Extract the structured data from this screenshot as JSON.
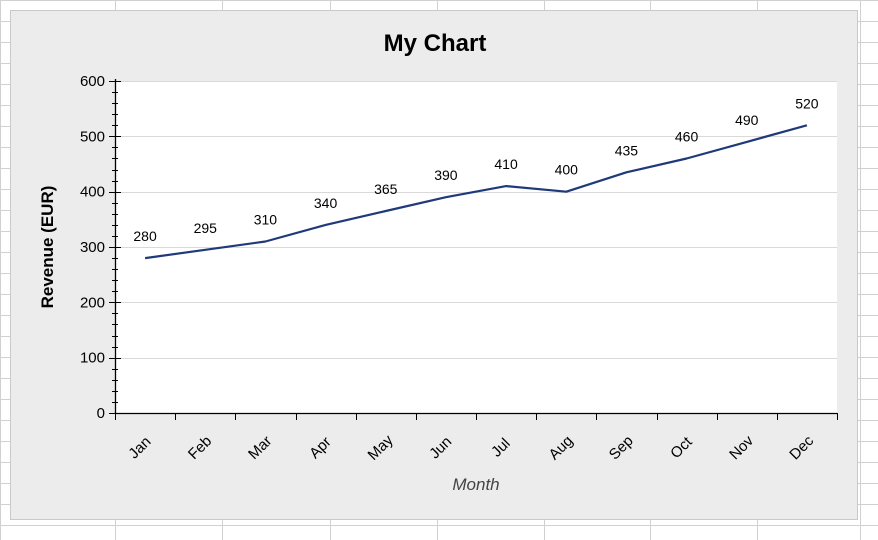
{
  "chart_data": {
    "type": "line",
    "title": "My Chart",
    "xlabel": "Month",
    "ylabel": "Revenue (EUR)",
    "categories": [
      "Jan",
      "Feb",
      "Mar",
      "Apr",
      "May",
      "Jun",
      "Jul",
      "Aug",
      "Sep",
      "Oct",
      "Nov",
      "Dec"
    ],
    "series": [
      {
        "values": [
          280,
          295,
          310,
          340,
          365,
          390,
          410,
          400,
          435,
          460,
          490,
          520
        ]
      }
    ],
    "ylim": [
      0,
      600
    ],
    "yticks": [
      0,
      100,
      200,
      300,
      400,
      500,
      600
    ],
    "grid": true,
    "data_labels": true,
    "legend": "none",
    "colors": {
      "line": "#1f3a7a",
      "plot_bg": "#ffffff",
      "chart_bg": "#ececec",
      "grid": "#d9d9d9"
    }
  }
}
